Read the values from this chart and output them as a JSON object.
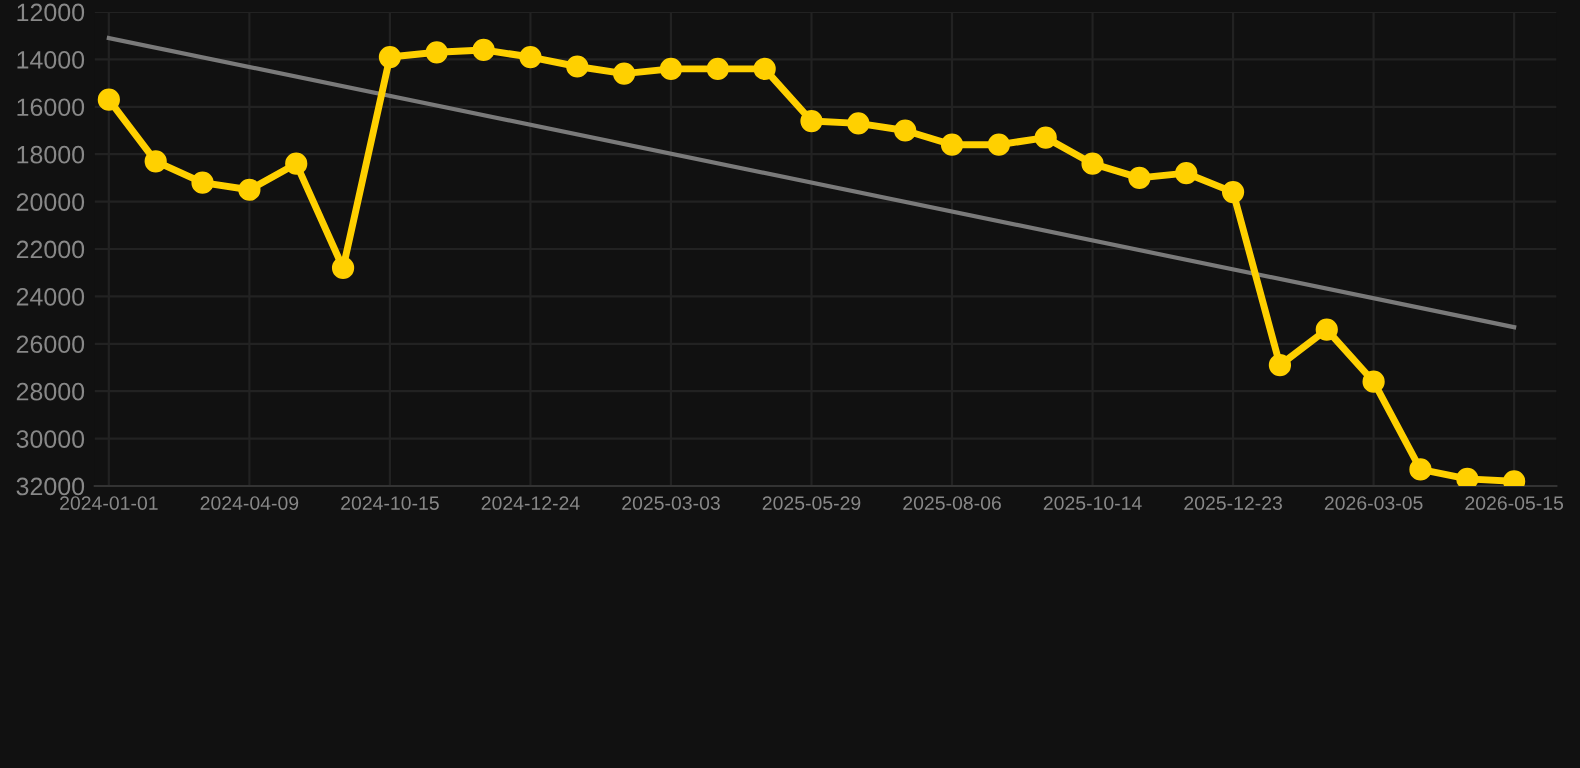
{
  "chart_data": {
    "type": "line",
    "categories": [
      "2024-01-01",
      null,
      null,
      "2024-04-09",
      null,
      null,
      "2024-10-15",
      null,
      null,
      "2024-12-24",
      null,
      null,
      "2025-03-03",
      null,
      null,
      "2025-05-29",
      null,
      null,
      "2025-08-06",
      null,
      null,
      "2025-10-14",
      null,
      null,
      "2025-12-23",
      null,
      null,
      "2026-03-05",
      null,
      null,
      "2026-05-15"
    ],
    "series": [
      {
        "color": "#ffd000",
        "marker": "circle",
        "values": [
          15700,
          18300,
          19200,
          19500,
          18400,
          22800,
          13900,
          13700,
          13600,
          13900,
          14300,
          14600,
          14400,
          14400,
          14400,
          16600,
          16700,
          17000,
          17600,
          17600,
          17300,
          18400,
          19000,
          18800,
          19600,
          26900,
          25400,
          27600,
          31300,
          31700,
          31800
        ]
      },
      {
        "type": "line",
        "color": "#7a7a7a",
        "marker": "none",
        "values": [
          13100,
          null,
          null,
          null,
          null,
          null,
          null,
          null,
          null,
          null,
          null,
          null,
          null,
          null,
          null,
          null,
          null,
          null,
          null,
          null,
          null,
          null,
          null,
          null,
          null,
          null,
          null,
          null,
          null,
          null,
          25300
        ]
      }
    ],
    "ylim": [
      32000,
      12000
    ],
    "yticks": [
      12000,
      14000,
      16000,
      18000,
      20000,
      22000,
      24000,
      26000,
      28000,
      30000,
      32000
    ],
    "grid": true
  }
}
